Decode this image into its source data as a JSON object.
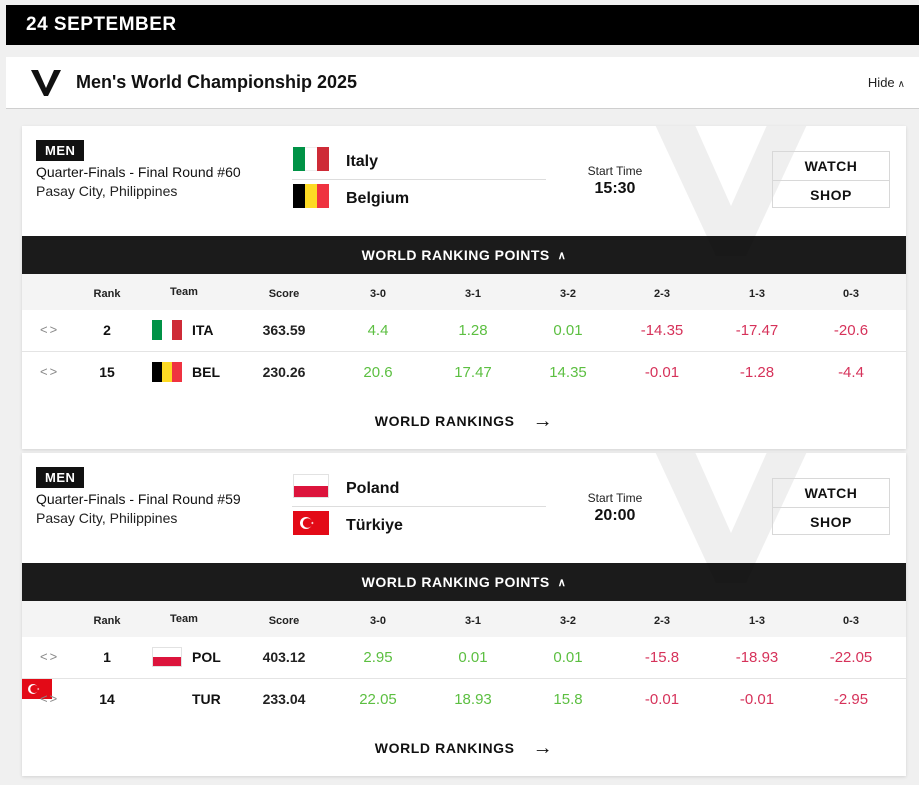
{
  "date_header": "24 SEPTEMBER",
  "championship": {
    "title": "Men's World Championship 2025",
    "hide_label": "Hide",
    "logo_icon": "vnl-v-logo-icon"
  },
  "labels": {
    "world_ranking_points": "WORLD RANKING POINTS",
    "world_rankings": "WORLD RANKINGS",
    "start_time": "Start Time",
    "watch": "WATCH",
    "shop": "SHOP",
    "columns": [
      "Rank",
      "Team",
      "Score",
      "3-0",
      "3-1",
      "3-2",
      "2-3",
      "1-3",
      "0-3"
    ]
  },
  "matches": [
    {
      "category": "MEN",
      "round": "Quarter-Finals - Final Round #60",
      "venue": "Pasay City, Philippines",
      "start_time": "15:30",
      "teams": [
        {
          "name": "Italy",
          "flag": [
            "#009246",
            "#ffffff",
            "#ce2b37"
          ]
        },
        {
          "name": "Belgium",
          "flag": [
            "#000000",
            "#fdda24",
            "#ef3340"
          ]
        }
      ],
      "rankings": [
        {
          "rank": "2",
          "code": "ITA",
          "score": "363.59",
          "points": [
            "4.4",
            "1.28",
            "0.01",
            "-14.35",
            "-17.47",
            "-20.6"
          ]
        },
        {
          "rank": "15",
          "code": "BEL",
          "score": "230.26",
          "points": [
            "20.6",
            "17.47",
            "14.35",
            "-0.01",
            "-1.28",
            "-4.4"
          ]
        }
      ]
    },
    {
      "category": "MEN",
      "round": "Quarter-Finals - Final Round #59",
      "venue": "Pasay City, Philippines",
      "start_time": "20:00",
      "teams": [
        {
          "name": "Poland",
          "flag_type": "poland"
        },
        {
          "name": "Türkiye",
          "flag_type": "turkey"
        }
      ],
      "rankings": [
        {
          "rank": "1",
          "code": "POL",
          "score": "403.12",
          "points": [
            "2.95",
            "0.01",
            "0.01",
            "-15.8",
            "-18.93",
            "-22.05"
          ]
        },
        {
          "rank": "14",
          "code": "TUR",
          "score": "233.04",
          "points": [
            "22.05",
            "18.93",
            "15.8",
            "-0.01",
            "-0.01",
            "-2.95"
          ]
        }
      ]
    }
  ]
}
